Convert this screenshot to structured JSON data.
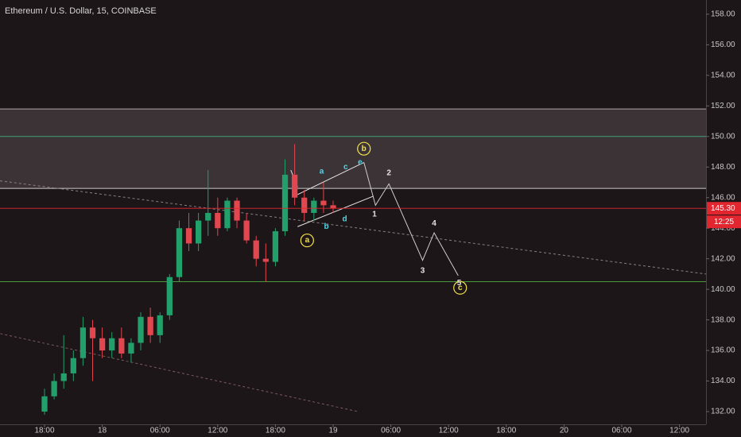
{
  "chart_data": {
    "type": "candlestick",
    "title": "Ethereum / U.S. Dollar, 15, COINBASE",
    "up_color": "#22a06b",
    "down_color": "#e2464f",
    "grid": false,
    "x": [
      0,
      1,
      2,
      3,
      4,
      5,
      6,
      7,
      8,
      9,
      10,
      11,
      12,
      13,
      14,
      15,
      16,
      17,
      18,
      19,
      20,
      21,
      22,
      23,
      24,
      25,
      26,
      27,
      28,
      29,
      30
    ],
    "open": [
      132,
      133,
      134,
      134.5,
      135.5,
      137.5,
      136.8,
      136,
      136.8,
      135.8,
      136.5,
      138.2,
      137,
      138.3,
      140.8,
      144,
      143,
      144.5,
      145,
      144,
      145.8,
      144.5,
      143.2,
      142,
      141.8,
      143.8,
      147.5,
      146,
      145,
      145.8,
      145.5
    ],
    "high": [
      133.5,
      134.5,
      137,
      136,
      138.2,
      138,
      137.5,
      137.2,
      137.5,
      136.8,
      138.5,
      138.8,
      138.5,
      141,
      144.5,
      145,
      145,
      147.8,
      146,
      146,
      146,
      145,
      143.5,
      143,
      144,
      148.5,
      149.5,
      146.5,
      146,
      147,
      145.8
    ],
    "low": [
      131.8,
      132.8,
      133.5,
      134,
      135,
      134,
      135.5,
      135.5,
      135.5,
      135.2,
      136,
      136.5,
      136.5,
      138,
      140.5,
      142.5,
      142.5,
      143.5,
      143.5,
      143.8,
      144,
      143,
      141.5,
      140.5,
      141.5,
      143.5,
      145.5,
      144.5,
      144.5,
      145,
      145
    ],
    "close": [
      133,
      134,
      134.5,
      135.5,
      137.5,
      136.8,
      136,
      136.8,
      135.8,
      136.5,
      138.2,
      137,
      138.3,
      140.8,
      144,
      143,
      144.5,
      145,
      144,
      145.8,
      144.5,
      143.2,
      142,
      141.8,
      143.8,
      147.5,
      146,
      145,
      145.8,
      145.5,
      145.3
    ],
    "xlim": [
      -4.63,
      68.76
    ],
    "ylim": [
      131.17,
      158.93
    ],
    "xticks": [
      {
        "value": 0,
        "label": "18:00"
      },
      {
        "value": 6,
        "label": "18"
      },
      {
        "value": 12,
        "label": "06:00"
      },
      {
        "value": 18,
        "label": "12:00"
      },
      {
        "value": 24,
        "label": "18:00"
      },
      {
        "value": 30,
        "label": "19"
      },
      {
        "value": 36,
        "label": "06:00"
      },
      {
        "value": 42,
        "label": "12:00"
      },
      {
        "value": 48,
        "label": "18:00"
      },
      {
        "value": 54,
        "label": "20"
      },
      {
        "value": 60,
        "label": "06:00"
      },
      {
        "value": 66,
        "label": "12:00"
      }
    ],
    "yticks": [
      {
        "value": 132,
        "label": "132.00"
      },
      {
        "value": 134,
        "label": "134.00"
      },
      {
        "value": 136,
        "label": "136.00"
      },
      {
        "value": 138,
        "label": "138.00"
      },
      {
        "value": 140,
        "label": "140.00"
      },
      {
        "value": 142,
        "label": "142.00"
      },
      {
        "value": 144,
        "label": "144.00"
      },
      {
        "value": 146,
        "label": "146.00"
      },
      {
        "value": 148,
        "label": "148.00"
      },
      {
        "value": 150,
        "label": "150.00"
      },
      {
        "value": 152,
        "label": "152.00"
      },
      {
        "value": 154,
        "label": "154.00"
      },
      {
        "value": 156,
        "label": "156.00"
      },
      {
        "value": 158,
        "label": "158.00"
      }
    ],
    "zone": {
      "from": 146.6,
      "to": 151.8,
      "color": "rgba(140,128,132,0.28)"
    },
    "levels": [
      {
        "value": 151.8,
        "color": "#a9a4a6"
      },
      {
        "value": 150,
        "color": "#3fa37a"
      },
      {
        "value": 146.6,
        "color": "#cfcbcc"
      },
      {
        "value": 140.5,
        "color": "#4a9a3c"
      }
    ],
    "current_price": {
      "value": 145.3,
      "label": "145.30",
      "color": "#e2262f"
    },
    "countdown": "12:25",
    "trendlines": [
      {
        "x": [
          -4.63,
          68.76
        ],
        "y": [
          147.1,
          141.0
        ],
        "color": "#8a7f83",
        "dashed": true
      },
      {
        "x": [
          -4.6,
          32.6
        ],
        "y": [
          137.1,
          132.0
        ],
        "color": "#7a5a60",
        "dashed": true
      },
      {
        "x": [
          25.6,
          26.3
        ],
        "y": [
          147.8,
          146.7
        ],
        "color": "#e6e3e4",
        "dashed": false
      },
      {
        "x": [
          26.3,
          33.2
        ],
        "y": [
          146.2,
          148.3
        ],
        "color": "#e6e3e4",
        "dashed": false
      },
      {
        "x": [
          26.3,
          34.2
        ],
        "y": [
          144.1,
          146.1
        ],
        "color": "#e6e3e4",
        "dashed": false
      },
      {
        "x": [
          33.2,
          34.4,
          35.8,
          39.3,
          40.5,
          43.0
        ],
        "y": [
          148.3,
          145.5,
          146.9,
          141.9,
          143.7,
          140.9
        ],
        "color": "#cfcbcc",
        "dashed": false
      }
    ],
    "annotations": [
      {
        "text": "a",
        "x": 28.8,
        "y": 147.7,
        "color": "#4fd6e6",
        "circled": false
      },
      {
        "text": "c",
        "x": 31.3,
        "y": 148.0,
        "color": "#4fd6e6",
        "circled": false
      },
      {
        "text": "e",
        "x": 32.8,
        "y": 148.3,
        "color": "#4fd6e6",
        "circled": false
      },
      {
        "text": "b",
        "x": 29.3,
        "y": 144.1,
        "color": "#4fd6e6",
        "circled": false
      },
      {
        "text": "d",
        "x": 31.2,
        "y": 144.6,
        "color": "#4fd6e6",
        "circled": false
      },
      {
        "text": "b",
        "x": 33.2,
        "y": 149.2,
        "color": "#f2e14a",
        "circled": true
      },
      {
        "text": "a",
        "x": 27.3,
        "y": 143.2,
        "color": "#f2e14a",
        "circled": true
      },
      {
        "text": "c",
        "x": 43.2,
        "y": 140.1,
        "color": "#f2e14a",
        "circled": true
      },
      {
        "text": "1",
        "x": 34.3,
        "y": 144.9,
        "color": "#e6e3e4",
        "circled": false
      },
      {
        "text": "2",
        "x": 35.8,
        "y": 147.6,
        "color": "#e6e3e4",
        "circled": false
      },
      {
        "text": "3",
        "x": 39.3,
        "y": 141.2,
        "color": "#e6e3e4",
        "circled": false
      },
      {
        "text": "4",
        "x": 40.5,
        "y": 144.3,
        "color": "#e6e3e4",
        "circled": false
      },
      {
        "text": "5",
        "x": 43.1,
        "y": 140.4,
        "color": "#e6e3e4",
        "circled": false
      }
    ]
  }
}
